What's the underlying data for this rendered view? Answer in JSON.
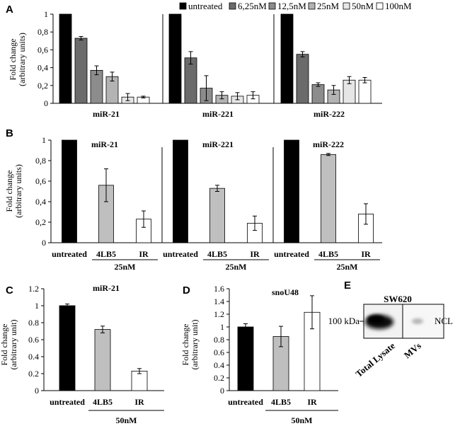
{
  "panel_labels": {
    "a": "A",
    "b": "B",
    "c": "C",
    "d": "D",
    "e": "E"
  },
  "legend": {
    "items": [
      {
        "label": "untreated",
        "color": "#000000"
      },
      {
        "label": "6,25nM",
        "color": "#6b6b6b"
      },
      {
        "label": "12,5nM",
        "color": "#8c8c8c"
      },
      {
        "label": "25nM",
        "color": "#b3b3b3"
      },
      {
        "label": "50nM",
        "color": "#e6e6e6"
      },
      {
        "label": "100nM",
        "color": "#ffffff"
      }
    ]
  },
  "y_label_line1": "Fold change",
  "y_label_line2_units": "(arbitrary units)",
  "y_label_line2_unit": "(arbitrary unit)",
  "chart_data": [
    {
      "panel": "A",
      "type": "bar",
      "ylim": [
        0,
        1
      ],
      "yticks": [
        "0",
        "0,2",
        "0,4",
        "0,6",
        "0,8",
        "1"
      ],
      "ylabel": "Fold change (arbitrary units)",
      "series_names": [
        "untreated",
        "6,25nM",
        "12,5nM",
        "25nM",
        "50nM",
        "100nM"
      ],
      "groups": [
        {
          "label": "miR-21",
          "values": [
            1.0,
            0.73,
            0.37,
            0.3,
            0.07,
            0.07
          ],
          "errors": [
            0,
            0.02,
            0.05,
            0.05,
            0.04,
            0.01
          ]
        },
        {
          "label": "miR-221",
          "values": [
            1.0,
            0.51,
            0.17,
            0.09,
            0.08,
            0.09
          ],
          "errors": [
            0,
            0.07,
            0.14,
            0.04,
            0.04,
            0.04
          ]
        },
        {
          "label": "miR-222",
          "values": [
            1.0,
            0.55,
            0.21,
            0.15,
            0.26,
            0.26
          ],
          "errors": [
            0,
            0.03,
            0.02,
            0.05,
            0.04,
            0.03
          ]
        }
      ]
    },
    {
      "panel": "B",
      "type": "bar",
      "ylim": [
        0,
        1
      ],
      "yticks": [
        "0",
        "0,2",
        "0,4",
        "0,6",
        "0,8",
        "1"
      ],
      "ylabel": "Fold change (arbitrary units)",
      "categories": [
        "untreated",
        "4LB5",
        "IR"
      ],
      "bracket_label": "25nM",
      "groups": [
        {
          "title": "miR-21",
          "values": [
            1.0,
            0.56,
            0.23
          ],
          "errors": [
            0,
            0.16,
            0.08
          ]
        },
        {
          "title": "miR-221",
          "values": [
            1.0,
            0.53,
            0.19
          ],
          "errors": [
            0,
            0.03,
            0.07
          ]
        },
        {
          "title": "miR-222",
          "values": [
            1.0,
            0.86,
            0.28
          ],
          "errors": [
            0,
            0.01,
            0.1
          ]
        }
      ]
    },
    {
      "panel": "C",
      "type": "bar",
      "title": "miR-21",
      "ylim": [
        0,
        1.2
      ],
      "yticks": [
        "0",
        "0.2",
        "0.4",
        "0.6",
        "0.8",
        "1",
        "1.2"
      ],
      "ylabel": "Fold change (arbitrary unit)",
      "categories": [
        "untreated",
        "4LB5",
        "IR"
      ],
      "values": [
        1.0,
        0.72,
        0.23
      ],
      "errors": [
        0.02,
        0.04,
        0.03
      ],
      "bracket_label": "50nM"
    },
    {
      "panel": "D",
      "type": "bar",
      "title": "snoU48",
      "ylim": [
        0,
        1.6
      ],
      "yticks": [
        "0",
        "0.2",
        "0.4",
        "0.6",
        "0.8",
        "1",
        "1.2",
        "1.4",
        "1.6"
      ],
      "ylabel": "Fold change (arbitrary unit)",
      "categories": [
        "untreated",
        "4LB5",
        "IR"
      ],
      "values": [
        1.0,
        0.85,
        1.23
      ],
      "errors": [
        0.05,
        0.16,
        0.26
      ],
      "bracket_label": "50nM"
    }
  ],
  "blot": {
    "title": "SW620",
    "marker": "100 kDa",
    "protein": "NCL",
    "lanes": [
      "Total Lysate",
      "MVs"
    ]
  }
}
